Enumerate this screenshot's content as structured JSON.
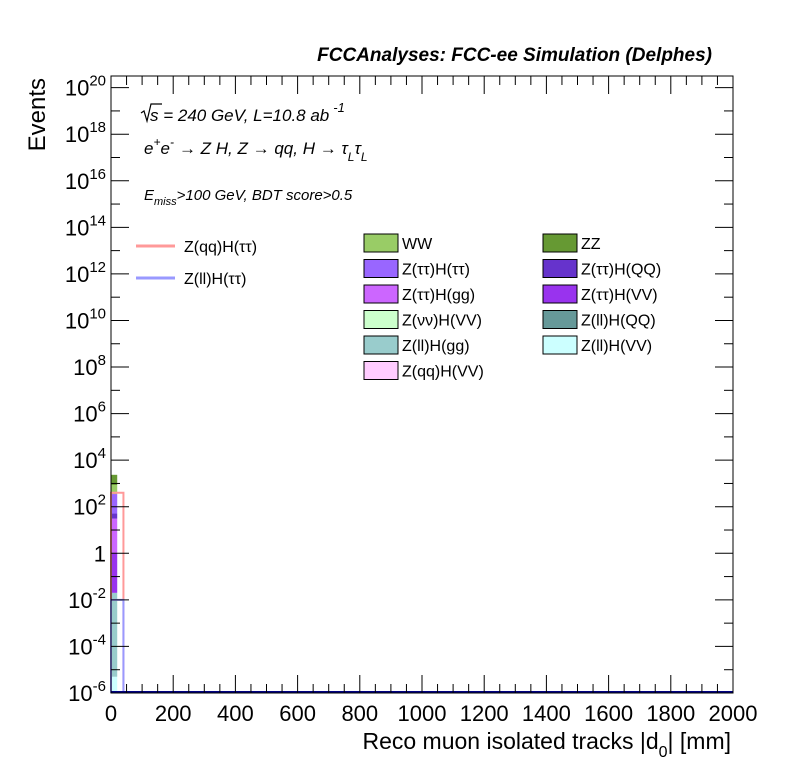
{
  "chart_data": {
    "type": "bar",
    "title": "FCCAnalyses: FCC-ee Simulation (Delphes)",
    "xlabel": "Reco muon isolated tracks |d",
    "xlabel_sub": "0",
    "xlabel_tail": "| [mm]",
    "ylabel": "Events",
    "xlim": [
      0,
      2000
    ],
    "ylim_log10": [
      -6,
      20.5
    ],
    "log_y": true,
    "grid": false,
    "x_ticks": [
      "0",
      "200",
      "400",
      "600",
      "800",
      "1000",
      "1200",
      "1400",
      "1600",
      "1800",
      "2000"
    ],
    "y_ticks": [
      {
        "base": "10",
        "exp": "20"
      },
      {
        "base": "10",
        "exp": "18"
      },
      {
        "base": "10",
        "exp": "16"
      },
      {
        "base": "10",
        "exp": "14"
      },
      {
        "base": "10",
        "exp": "12"
      },
      {
        "base": "10",
        "exp": "10"
      },
      {
        "base": "10",
        "exp": "8"
      },
      {
        "base": "10",
        "exp": "6"
      },
      {
        "base": "10",
        "exp": "4"
      },
      {
        "base": "10",
        "exp": "2"
      },
      {
        "base": "1",
        "exp": ""
      },
      {
        "base": "10",
        "exp": "-2"
      },
      {
        "base": "10",
        "exp": "-4"
      },
      {
        "base": "10",
        "exp": "-6"
      }
    ],
    "annotations": {
      "sqrt_s": "s = 240 GeV, L=10.8 ab",
      "sqrt_s_exp": "-1",
      "process_prefix": "e",
      "process_ep": "+",
      "process_e": "e",
      "process_em": "-",
      "process_body": "→ Z H, Z  → qq, H  → τ",
      "process_L1": "L",
      "process_tau2": "τ",
      "process_L2": "L",
      "emiss": "E",
      "emiss_sub": "miss",
      "emiss_tail": ">100 GeV, BDT score>0.5"
    },
    "bin_range_mm": [
      0,
      20
    ],
    "stack": [
      {
        "name": "Z(ll)H(VV)",
        "color": "#ccffff",
        "value": 4e-06
      },
      {
        "name": "Z(ll)H(gg)",
        "color": "#99cccc",
        "value": 0.02
      },
      {
        "name": "Z(ll)H(QQ)",
        "color": "#669999",
        "value": 1e-05
      },
      {
        "name": "Z(νν)H(VV)",
        "color": "#ccffcc",
        "value": 1e-05
      },
      {
        "name": "Z(qq)H(VV)",
        "color": "#ffccff",
        "value": 1e-05
      },
      {
        "name": "Z(ττ)H(VV)",
        "color": "#9933ee",
        "value": 1
      },
      {
        "name": "Z(ττ)H(gg)",
        "color": "#cc66ff",
        "value": 30
      },
      {
        "name": "Z(ττ)H(QQ)",
        "color": "#6633cc",
        "value": 20
      },
      {
        "name": "Z(ττ)H(ττ)",
        "color": "#9966ff",
        "value": 300
      },
      {
        "name": "WW",
        "color": "#99cc66",
        "value": 500
      },
      {
        "name": "ZZ",
        "color": "#669933",
        "value": 1500
      }
    ],
    "lines": [
      {
        "name": "Z(qq)H(ττ)",
        "color": "#ff9999",
        "value": 400,
        "x_range": [
          0,
          40
        ]
      },
      {
        "name": "Z(ll)H(ττ)",
        "color": "#9999ff",
        "value": 0.01,
        "x_range": [
          0,
          40
        ]
      }
    ],
    "legend_bkg": [
      {
        "name": "WW",
        "color": "#99cc66"
      },
      {
        "name": "ZZ",
        "color": "#669933"
      },
      {
        "name": "Z(ττ)H(ττ)",
        "color": "#9966ff"
      },
      {
        "name": "Z(ττ)H(QQ)",
        "color": "#6633cc"
      },
      {
        "name": "Z(ττ)H(gg)",
        "color": "#cc66ff"
      },
      {
        "name": "Z(ττ)H(VV)",
        "color": "#9933ee"
      },
      {
        "name": "Z(νν)H(VV)",
        "color": "#ccffcc"
      },
      {
        "name": "Z(ll)H(QQ)",
        "color": "#669999"
      },
      {
        "name": "Z(ll)H(gg)",
        "color": "#99cccc"
      },
      {
        "name": "Z(ll)H(VV)",
        "color": "#ccffff"
      },
      {
        "name": "Z(qq)H(VV)",
        "color": "#ffccff"
      }
    ],
    "legend_sig": [
      {
        "name": "Z(qq)H(ττ)",
        "color": "#ff9999"
      },
      {
        "name": "Z(ll)H(ττ)",
        "color": "#9999ff"
      }
    ],
    "baseline_color": "#000080"
  }
}
